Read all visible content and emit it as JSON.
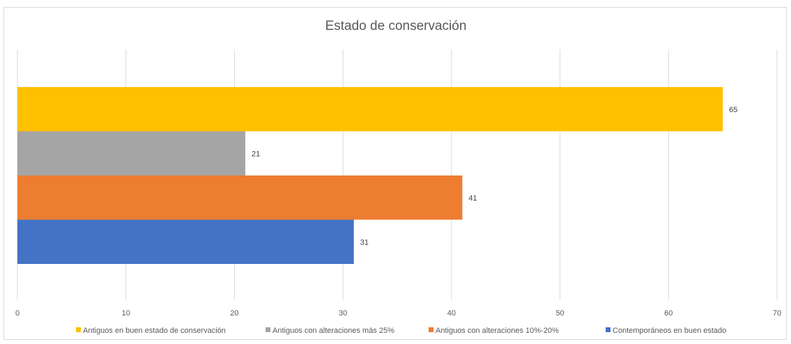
{
  "chart_data": {
    "type": "bar",
    "orientation": "horizontal",
    "title": "Estado de conservación",
    "xlabel": "",
    "ylabel": "",
    "xlim": [
      0,
      70
    ],
    "x_ticks": [
      0,
      10,
      20,
      30,
      40,
      50,
      60,
      70
    ],
    "grid": true,
    "legend_position": "bottom",
    "data_labels": true,
    "series": [
      {
        "name": "Antiguos en buen estado de conservación",
        "value": 65,
        "color": "#FFC000"
      },
      {
        "name": "Antiguos con alteraciones más 25%",
        "value": 21,
        "color": "#A5A5A5"
      },
      {
        "name": "Antiguos con alteraciones 10%-20%",
        "value": 41,
        "color": "#ED7D31"
      },
      {
        "name": "Contemporáneos en buen estado",
        "value": 31,
        "color": "#4472C4"
      }
    ]
  }
}
